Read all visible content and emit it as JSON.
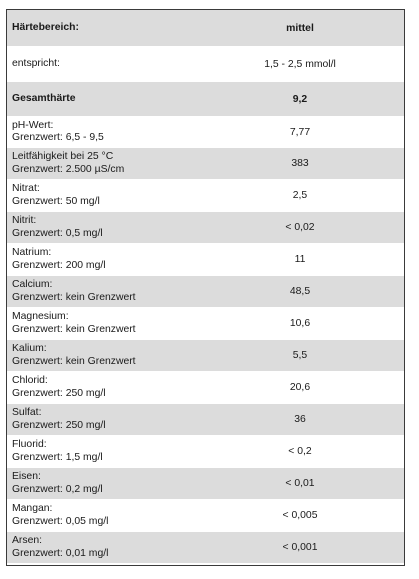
{
  "rows": [
    {
      "label": "Härtebereich:",
      "sub": "",
      "value": "mittel",
      "bold": true,
      "shaded": true,
      "h": 36
    },
    {
      "label": "entspricht:",
      "sub": "",
      "value": "1,5 - 2,5 mmol/l",
      "bold": false,
      "shaded": false,
      "h": 35
    },
    {
      "label": "Gesamthärte",
      "sub": "",
      "value": "9,2",
      "bold": true,
      "shaded": true,
      "h": 35
    },
    {
      "label": "pH-Wert:",
      "sub": "Grenzwert: 6,5 - 9,5",
      "value": "7,77",
      "bold": false,
      "shaded": false,
      "h": 31
    },
    {
      "label": "Leitfähigkeit bei 25 °C",
      "sub": "Grenzwert: 2.500 µS/cm",
      "value": "383",
      "bold": false,
      "shaded": true,
      "h": 32
    },
    {
      "label": "Nitrat:",
      "sub": "Grenzwert:  50 mg/l",
      "value": "2,5",
      "bold": false,
      "shaded": false,
      "h": 32
    },
    {
      "label": "Nitrit:",
      "sub": "Grenzwert: 0,5 mg/l",
      "value": "< 0,02",
      "bold": false,
      "shaded": true,
      "h": 32
    },
    {
      "label": "Natrium:",
      "sub": "Grenzwert: 200 mg/l",
      "value": "11",
      "bold": false,
      "shaded": false,
      "h": 32
    },
    {
      "label": "Calcium:",
      "sub": "Grenzwert: kein Grenzwert",
      "value": "48,5",
      "bold": false,
      "shaded": true,
      "h": 32
    },
    {
      "label": "Magnesium:",
      "sub": "Grenzwert: kein Grenzwert",
      "value": "10,6",
      "bold": false,
      "shaded": false,
      "h": 32
    },
    {
      "label": "Kalium:",
      "sub": "Grenzwert: kein Grenzwert",
      "value": "5,5",
      "bold": false,
      "shaded": true,
      "h": 32
    },
    {
      "label": "Chlorid:",
      "sub": "Grenzwert: 250 mg/l",
      "value": "20,6",
      "bold": false,
      "shaded": false,
      "h": 32
    },
    {
      "label": "Sulfat:",
      "sub": "Grenzwert: 250 mg/l",
      "value": "36",
      "bold": false,
      "shaded": true,
      "h": 32
    },
    {
      "label": "Fluorid:",
      "sub": "Grenzwert:  1,5 mg/l",
      "value": "< 0,2",
      "bold": false,
      "shaded": false,
      "h": 32
    },
    {
      "label": "Eisen:",
      "sub": "Grenzwert: 0,2 mg/l",
      "value": "< 0,01",
      "bold": false,
      "shaded": true,
      "h": 32
    },
    {
      "label": "Mangan:",
      "sub": "Grenzwert: 0,05 mg/l",
      "value": "< 0,005",
      "bold": false,
      "shaded": false,
      "h": 32
    },
    {
      "label": "Arsen:",
      "sub": "Grenzwert: 0,01 mg/l",
      "value": "< 0,001",
      "bold": false,
      "shaded": true,
      "h": 32
    }
  ]
}
